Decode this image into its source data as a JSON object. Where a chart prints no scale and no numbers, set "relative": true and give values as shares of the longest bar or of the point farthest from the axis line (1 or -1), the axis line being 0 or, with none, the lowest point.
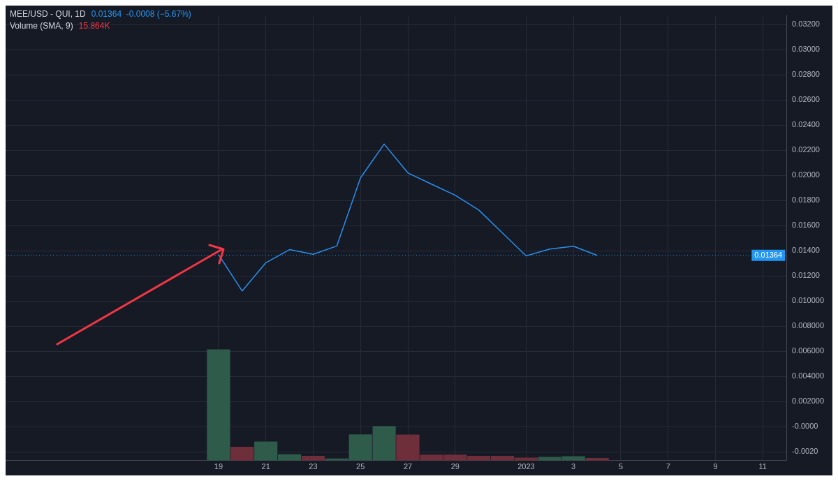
{
  "chart_data": [
    {
      "type": "line",
      "title": "MEE/USD - QUI, 1D",
      "annotations": [
        "0.01364  -0.0008 (−5.67%)"
      ],
      "x": [
        "2022-12-19",
        "2022-12-20",
        "2022-12-21",
        "2022-12-22",
        "2022-12-23",
        "2022-12-24",
        "2022-12-25",
        "2022-12-26",
        "2022-12-27",
        "2022-12-28",
        "2022-12-29",
        "2022-12-30",
        "2022-12-31",
        "2023-01-01",
        "2023-01-02",
        "2023-01-03",
        "2023-01-04"
      ],
      "xlim": [
        "2022-12-10",
        "2023-01-12"
      ],
      "xticks": [
        {
          "value": "2022-12-19",
          "label": "19"
        },
        {
          "value": "2022-12-21",
          "label": "21"
        },
        {
          "value": "2022-12-23",
          "label": "23"
        },
        {
          "value": "2022-12-25",
          "label": "25"
        },
        {
          "value": "2022-12-27",
          "label": "27"
        },
        {
          "value": "2022-12-29",
          "label": "29"
        },
        {
          "value": "2023-01-01",
          "label": "2023"
        },
        {
          "value": "2023-01-03",
          "label": "3"
        },
        {
          "value": "2023-01-05",
          "label": "5"
        },
        {
          "value": "2023-01-07",
          "label": "7"
        },
        {
          "value": "2023-01-09",
          "label": "9"
        },
        {
          "value": "2023-01-11",
          "label": "11"
        }
      ],
      "ylim": [
        -0.0027,
        0.0327
      ],
      "yticks": [
        {
          "value": 0.032,
          "label": "0.03200"
        },
        {
          "value": 0.03,
          "label": "0.03000"
        },
        {
          "value": 0.028,
          "label": "0.02800"
        },
        {
          "value": 0.026,
          "label": "0.02600"
        },
        {
          "value": 0.024,
          "label": "0.02400"
        },
        {
          "value": 0.022,
          "label": "0.02200"
        },
        {
          "value": 0.02,
          "label": "0.02000"
        },
        {
          "value": 0.018,
          "label": "0.01800"
        },
        {
          "value": 0.016,
          "label": "0.01600"
        },
        {
          "value": 0.014,
          "label": "0.01400"
        },
        {
          "value": 0.012,
          "label": "0.01200"
        },
        {
          "value": 0.01,
          "label": "0.010000"
        },
        {
          "value": 0.008,
          "label": "0.008000"
        },
        {
          "value": 0.006,
          "label": "0.006000"
        },
        {
          "value": 0.004,
          "label": "0.004000"
        },
        {
          "value": 0.002,
          "label": "0.002000"
        },
        {
          "value": 0,
          "label": "-0.0000"
        },
        {
          "value": -0.002,
          "label": "-0.0020"
        }
      ],
      "grid": true,
      "marker": "none",
      "line_style": "solid",
      "ref_lines": [
        {
          "axis": "y",
          "value": 0.01364,
          "label": "0.01364",
          "color": "#2196f3",
          "line_style": "dotted"
        }
      ],
      "series": [
        {
          "color": "#2a8ff0",
          "values": [
            0.0137,
            0.0108,
            0.01305,
            0.01409,
            0.01372,
            0.01438,
            0.0198,
            0.02249,
            0.0202,
            0.0193,
            0.01842,
            0.01724,
            0.01541,
            0.01359,
            0.01414,
            0.01436,
            0.01364
          ]
        }
      ]
    },
    {
      "type": "bar",
      "title": "Volume (SMA, 9)",
      "annotations": [
        "15.864K"
      ],
      "relative": true,
      "x": [
        "2022-12-19",
        "2022-12-20",
        "2022-12-21",
        "2022-12-22",
        "2022-12-23",
        "2022-12-24",
        "2022-12-25",
        "2022-12-26",
        "2022-12-27",
        "2022-12-28",
        "2022-12-29",
        "2022-12-30",
        "2022-12-31",
        "2023-01-01",
        "2023-01-02",
        "2023-01-03",
        "2023-01-04"
      ],
      "xlim": [
        "2022-12-10",
        "2023-01-12"
      ],
      "series": [
        {
          "colors": [
            "#2f5b4b",
            "#6e2f3b",
            "#2f5b4b",
            "#2f5b4b",
            "#6e2f3b",
            "#2f5b4b",
            "#2f5b4b",
            "#2f5b4b",
            "#6e2f3b",
            "#6e2f3b",
            "#6e2f3b",
            "#6e2f3b",
            "#6e2f3b",
            "#6e2f3b",
            "#2f5b4b",
            "#2f5b4b",
            "#6e2f3b"
          ],
          "values": [
            1,
            0.125,
            0.171,
            0.058,
            0.043,
            0.019,
            0.236,
            0.311,
            0.234,
            0.053,
            0.053,
            0.043,
            0.043,
            0.027,
            0.034,
            0.039,
            0.024
          ]
        }
      ]
    }
  ]
}
